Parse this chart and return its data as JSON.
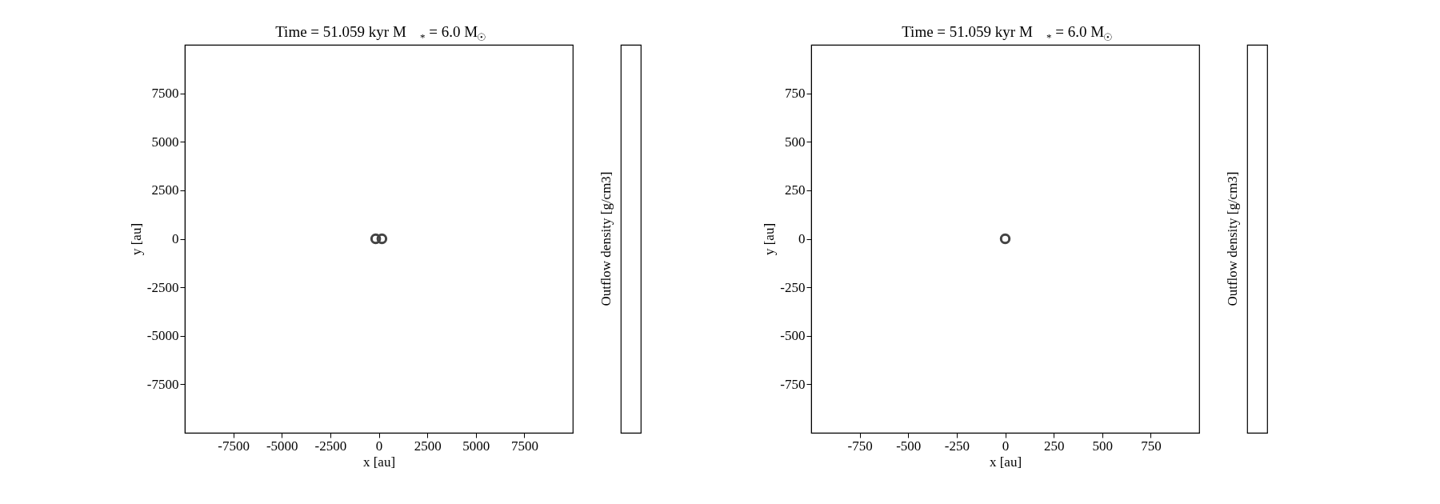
{
  "chart_data": [
    {
      "type": "scatter",
      "title": "Time = 51.059 kyr    M$_{*}$ = 6.0 M$_{☉}$",
      "xlabel": "x [au]",
      "ylabel": "y [au]",
      "clabel": "Outflow density [g/cm3]",
      "series": [
        {
          "color": "#444444",
          "x": [
            -160,
            160
          ],
          "values": [
            0,
            0
          ]
        }
      ],
      "xlim": [
        -10000,
        10000
      ],
      "ylim": [
        -10000,
        10000
      ],
      "xticks": [
        -7500,
        -5000,
        -2500,
        0,
        2500,
        5000,
        7500
      ],
      "yticks": [
        -7500,
        -5000,
        -2500,
        0,
        2500,
        5000,
        7500
      ],
      "marker": "circle",
      "grid": false,
      "legend": false
    },
    {
      "type": "scatter",
      "title": "Time = 51.059 kyr    M$_{*}$ = 6.0 M$_{☉}$",
      "xlabel": "x [au]",
      "ylabel": "y [au]",
      "clabel": "Outflow density [g/cm3]",
      "series": [
        {
          "color": "#444444",
          "x": [
            0
          ],
          "values": [
            0
          ]
        }
      ],
      "xlim": [
        -1000,
        1000
      ],
      "ylim": [
        -1000,
        1000
      ],
      "xticks": [
        -750,
        -500,
        -250,
        0,
        250,
        500,
        750
      ],
      "yticks": [
        -750,
        -500,
        -250,
        0,
        250,
        500,
        750
      ],
      "marker": "circle",
      "grid": false,
      "legend": false
    }
  ]
}
